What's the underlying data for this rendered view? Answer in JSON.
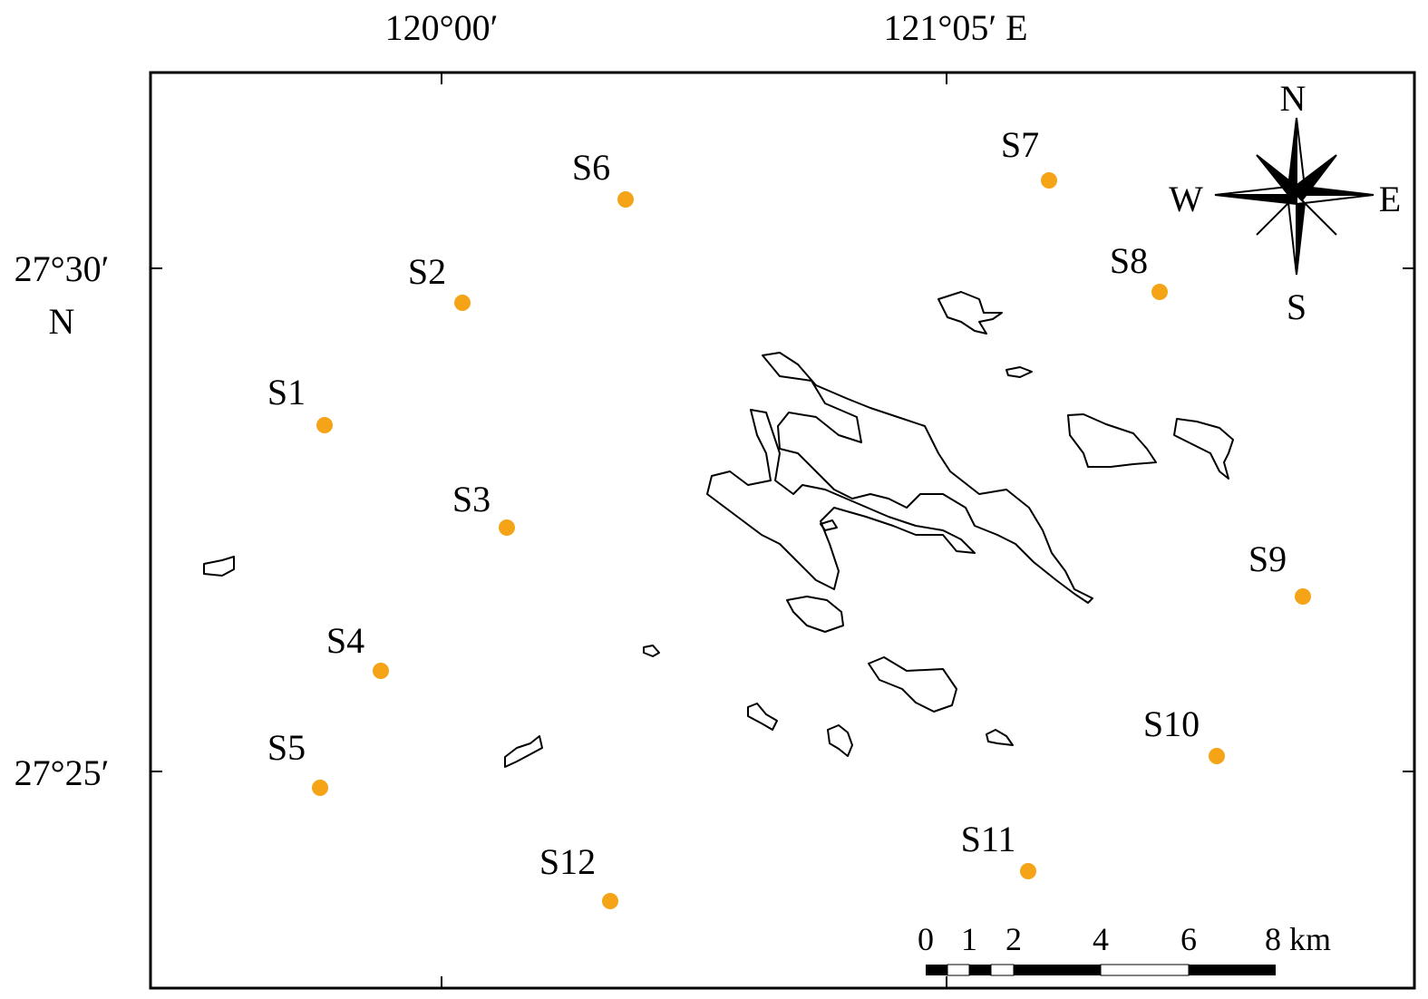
{
  "axes": {
    "top": [
      "120°00′",
      "121°05′ E"
    ],
    "left": [
      "27°30′",
      "27°25′"
    ],
    "left_hemisphere": "N"
  },
  "stations": [
    "S1",
    "S2",
    "S3",
    "S4",
    "S5",
    "S6",
    "S7",
    "S8",
    "S9",
    "S10",
    "S11",
    "S12"
  ],
  "compass": {
    "north": "N",
    "west": "W",
    "east": "E",
    "south": "S"
  },
  "scale_bar": [
    "0",
    "1",
    "2",
    "4",
    "6",
    "8 km"
  ]
}
